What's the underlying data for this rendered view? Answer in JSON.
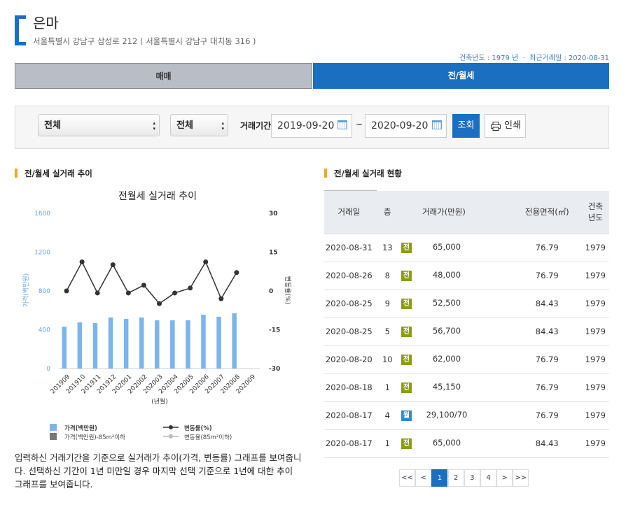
{
  "header": {
    "title": "은마",
    "address": "서울특별시 강남구 삼성로 212 ( 서울특별시 강남구 대치동 316 )",
    "meta": "건축년도 : 1979 년  ·  최근거래일 : 2020-08-31"
  },
  "tabs": {
    "items": [
      "매매",
      "전/월세"
    ],
    "active": 1
  },
  "filter": {
    "selects": [
      "전체",
      "전체"
    ],
    "period_label": "거래기간",
    "date_from": "2019-09-20",
    "separator": "~",
    "date_to": "2020-09-20",
    "search_button": "조회",
    "print_button": "인쇄"
  },
  "left_section": {
    "title": "전/월세 실거래 추이",
    "description": "입력하신 거래기간을 기준으로 실거래가 추이(가격, 변동률) 그래프를 보여줍니다. 선택하신 기간이 1년 미만일 경우 마지막 선택 기준으로 1년에 대한 추이 그래프를 보여줍니다."
  },
  "chart_data": {
    "type": "bar",
    "title": "전월세 실거래 추이",
    "x_label": "(년월)",
    "y_label": "가격(백만원)",
    "y2_label": "변동률(%)",
    "categories": [
      "201909",
      "201910",
      "201911",
      "201912",
      "202001",
      "202002",
      "202003",
      "202004",
      "202005",
      "202006",
      "202007",
      "202008",
      "202009"
    ],
    "series": [
      {
        "name": "가격(백만원)",
        "type": "bar",
        "color": "#7cb5ec",
        "values": [
          432,
          476,
          468,
          526,
          512,
          526,
          497,
          497,
          497,
          555,
          533,
          569,
          null
        ]
      },
      {
        "name": "가격(백만원)-85m²이하",
        "type": "bar",
        "color": "#777777",
        "values": [
          null,
          null,
          null,
          null,
          null,
          null,
          null,
          null,
          null,
          null,
          null,
          null,
          null
        ]
      },
      {
        "name": "변동률(%)",
        "type": "line",
        "axis": "y2",
        "color": "#333333",
        "values": [
          0,
          11.2,
          -0.8,
          10.1,
          -0.8,
          2.2,
          -4.9,
          -0.8,
          1.1,
          11.2,
          -3,
          7.1,
          null
        ]
      },
      {
        "name": "변동율(85m²이하)",
        "type": "line",
        "axis": "y2",
        "color": "#bbbbbb",
        "values": [
          null,
          null,
          null,
          null,
          null,
          null,
          null,
          null,
          null,
          null,
          null,
          null,
          null
        ]
      }
    ],
    "ylim": [
      0,
      1600
    ],
    "yticks": [
      0,
      400,
      800,
      1200,
      1600
    ],
    "y2lim": [
      -30,
      30
    ],
    "y2ticks": [
      -30,
      -15,
      0,
      15,
      30
    ],
    "grid": false
  },
  "right_section": {
    "title": "전/월세 실거래 현황"
  },
  "table": {
    "headers": [
      "거래일",
      "층",
      "거래가(만원)",
      "전용면적(㎡)",
      "건축\n년도"
    ],
    "rows": [
      [
        "2020-08-31",
        13,
        "전",
        "65,000",
        76.79,
        1979
      ],
      [
        "2020-08-26",
        8,
        "전",
        "48,000",
        76.79,
        1979
      ],
      [
        "2020-08-25",
        9,
        "전",
        "52,500",
        84.43,
        1979
      ],
      [
        "2020-08-25",
        5,
        "전",
        "56,700",
        84.43,
        1979
      ],
      [
        "2020-08-20",
        10,
        "전",
        "62,000",
        76.79,
        1979
      ],
      [
        "2020-08-18",
        1,
        "전",
        "45,150",
        76.79,
        1979
      ],
      [
        "2020-08-17",
        4,
        "월",
        "29,100/70",
        76.79,
        1979
      ],
      [
        "2020-08-17",
        1,
        "전",
        "65,000",
        84.43,
        1979
      ]
    ]
  },
  "pagination": {
    "items": [
      "<<",
      "<",
      "1",
      "2",
      "3",
      "4",
      ">",
      ">>"
    ],
    "active": 2
  }
}
